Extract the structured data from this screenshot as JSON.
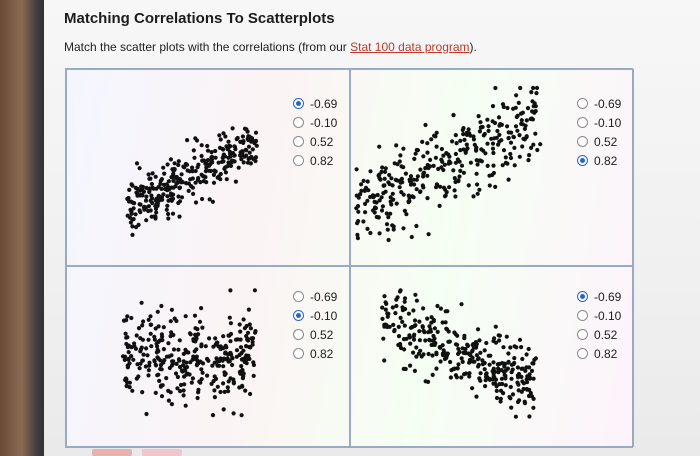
{
  "page": {
    "title": "Matching Correlations To Scatterplots",
    "instruction_prefix": "Match the scatter plots with the correlations (from our ",
    "instruction_link": "Stat 100 data program",
    "instruction_suffix": ")."
  },
  "options": [
    "-0.69",
    "-0.10",
    "0.52",
    "0.82"
  ],
  "plots": [
    {
      "position": "top-left",
      "selected": "-0.69"
    },
    {
      "position": "top-right",
      "selected": "0.82"
    },
    {
      "position": "bottom-left",
      "selected": "-0.10"
    },
    {
      "position": "bottom-right",
      "selected": "-0.69"
    }
  ],
  "colors": {
    "link": "#c0392b",
    "radio_selected": "#2a64c8",
    "grid_border": "#9aa9c4"
  }
}
